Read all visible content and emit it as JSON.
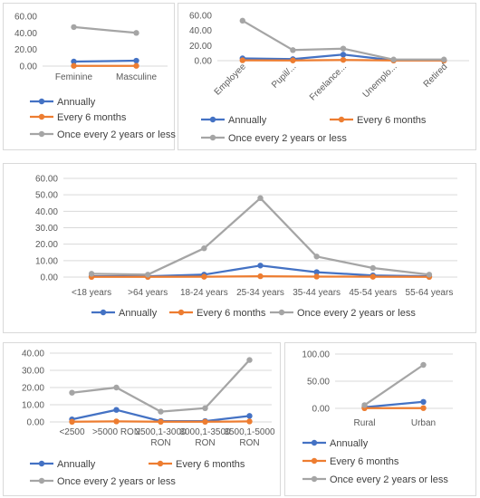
{
  "colors": {
    "annually": "#4472c4",
    "every6": "#ed7d31",
    "once2": "#a5a5a5",
    "grid": "#d9d9d9",
    "text": "#595959"
  },
  "chart_data": [
    {
      "type": "line",
      "categories": [
        "Feminine",
        "Masculine"
      ],
      "ylim": [
        0,
        60
      ],
      "yticks": [
        "0.00",
        "20.00",
        "40.00",
        "60.00"
      ],
      "yticks_values": [
        0,
        20,
        40,
        60
      ],
      "series": [
        {
          "name": "Annually",
          "values": [
            5.5,
            6.5
          ]
        },
        {
          "name": "Every 6 months",
          "values": [
            0.3,
            0.3
          ]
        },
        {
          "name": "Once every 2 years or less",
          "values": [
            47,
            40
          ]
        }
      ],
      "grid": false,
      "legend": "bottom"
    },
    {
      "type": "line",
      "categories": [
        "Employee",
        "Pupil/...",
        "Freelance...",
        "Unemplo...",
        "Retired"
      ],
      "ylim": [
        0,
        60
      ],
      "yticks": [
        "0.00",
        "20.00",
        "40.00",
        "60.00"
      ],
      "yticks_values": [
        0,
        20,
        40,
        60
      ],
      "series": [
        {
          "name": "Annually",
          "values": [
            3,
            2,
            8,
            0.5,
            0.5
          ]
        },
        {
          "name": "Every 6 months",
          "values": [
            0.5,
            0.3,
            1,
            0.2,
            0.2
          ]
        },
        {
          "name": "Once every 2 years or less",
          "values": [
            53,
            14,
            16,
            1.5,
            1.5
          ]
        }
      ],
      "grid": false,
      "legend": "bottom"
    },
    {
      "type": "line",
      "categories": [
        "<18 years",
        ">64 years",
        "18-24 years",
        "25-34 years",
        "35-44 years",
        "45-54 years",
        "55-64 years"
      ],
      "ylim": [
        0,
        60
      ],
      "yticks": [
        "0.00",
        "10.00",
        "20.00",
        "30.00",
        "40.00",
        "50.00",
        "60.00"
      ],
      "yticks_values": [
        0,
        10,
        20,
        30,
        40,
        50,
        60
      ],
      "series": [
        {
          "name": "Annually",
          "values": [
            0.5,
            0.5,
            1.5,
            7,
            3,
            1,
            0.5
          ]
        },
        {
          "name": "Every 6 months",
          "values": [
            0.1,
            0.1,
            0.2,
            0.5,
            0.3,
            0.2,
            0.1
          ]
        },
        {
          "name": "Once every 2 years or less",
          "values": [
            2,
            1.5,
            17.5,
            48,
            12.5,
            5.5,
            1.5
          ]
        }
      ],
      "grid": true,
      "legend": "bottom"
    },
    {
      "type": "line",
      "categories": [
        "<2500",
        ">5000 RON",
        "2500,1-3000 RON",
        "3000,1-3500 RON",
        "3500,1-5000 RON"
      ],
      "ylim": [
        0,
        40
      ],
      "yticks": [
        "0.00",
        "10.00",
        "20.00",
        "30.00",
        "40.00"
      ],
      "yticks_values": [
        0,
        10,
        20,
        30,
        40
      ],
      "series": [
        {
          "name": "Annually",
          "values": [
            1.5,
            7,
            0.5,
            0.5,
            3.5
          ]
        },
        {
          "name": "Every 6 months",
          "values": [
            0.1,
            0.3,
            0.1,
            0.1,
            0.3
          ]
        },
        {
          "name": "Once every 2 years or less",
          "values": [
            17,
            20,
            6,
            8,
            36
          ]
        }
      ],
      "grid": true,
      "legend": "bottom"
    },
    {
      "type": "line",
      "categories": [
        "Rural",
        "Urban"
      ],
      "ylim": [
        0,
        100
      ],
      "yticks": [
        "0.00",
        "50.00",
        "100.00"
      ],
      "yticks_values": [
        0,
        50,
        100
      ],
      "series": [
        {
          "name": "Annually",
          "values": [
            2,
            12
          ]
        },
        {
          "name": "Every 6 months",
          "values": [
            0.3,
            0.5
          ]
        },
        {
          "name": "Once every 2 years or less",
          "values": [
            6,
            80
          ]
        }
      ],
      "grid": true,
      "legend": "bottom"
    }
  ]
}
